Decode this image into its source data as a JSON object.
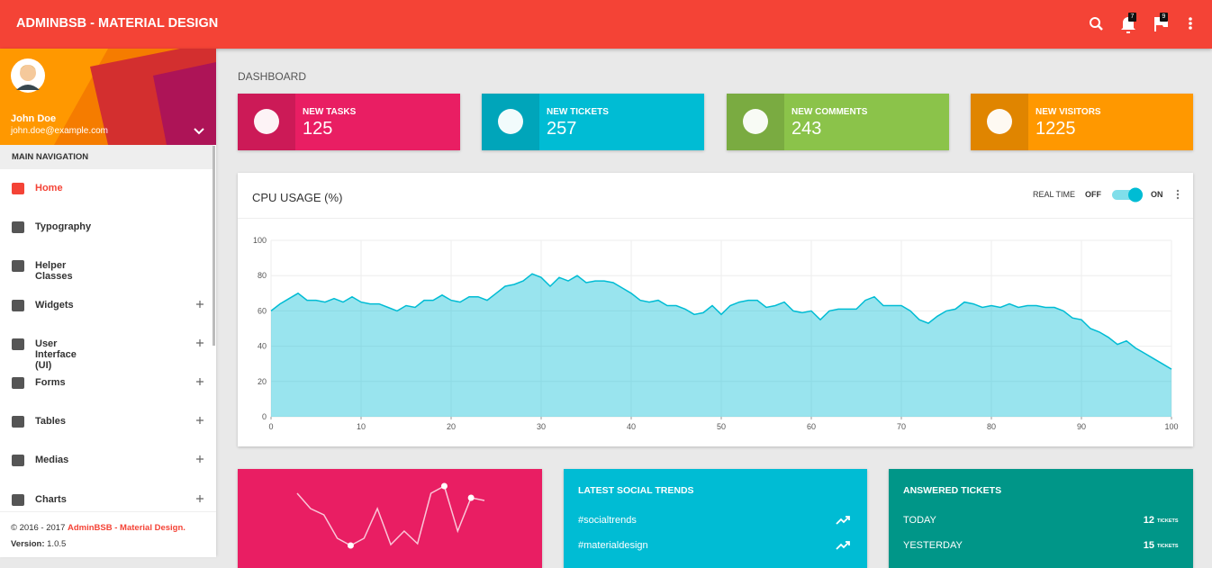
{
  "header": {
    "title": "ADMINBSB - MATERIAL DESIGN",
    "notifications": 7,
    "flags": 9
  },
  "user": {
    "name": "John Doe",
    "email": "john.doe@example.com"
  },
  "nav": {
    "heading": "MAIN NAVIGATION",
    "items": [
      {
        "label": "Home",
        "active": true,
        "expandable": false
      },
      {
        "label": "Typography",
        "active": false,
        "expandable": false
      },
      {
        "label": "Helper Classes",
        "active": false,
        "expandable": false
      },
      {
        "label": "Widgets",
        "active": false,
        "expandable": true
      },
      {
        "label": "User Interface (UI)",
        "active": false,
        "expandable": true
      },
      {
        "label": "Forms",
        "active": false,
        "expandable": true
      },
      {
        "label": "Tables",
        "active": false,
        "expandable": true
      },
      {
        "label": "Medias",
        "active": false,
        "expandable": true
      },
      {
        "label": "Charts",
        "active": false,
        "expandable": true
      }
    ]
  },
  "footer": {
    "copyright": "© 2016 - 2017",
    "brand": "AdminBSB - Material Design.",
    "version_label": "Version:",
    "version": "1.0.5"
  },
  "page_title": "DASHBOARD",
  "info_boxes": [
    {
      "label": "NEW TASKS",
      "value": 125,
      "color": "#e91e63"
    },
    {
      "label": "NEW TICKETS",
      "value": 257,
      "color": "#00bcd4"
    },
    {
      "label": "NEW COMMENTS",
      "value": 243,
      "color": "#8bc34a"
    },
    {
      "label": "NEW VISITORS",
      "value": 1225,
      "color": "#ff9800"
    }
  ],
  "cpu_card": {
    "realtime": "REAL TIME",
    "off": "OFF",
    "on": "ON"
  },
  "social_trends": {
    "title": "LATEST SOCIAL TRENDS",
    "items": [
      "#socialtrends",
      "#materialdesign"
    ]
  },
  "answered_tickets": {
    "title": "ANSWERED TICKETS",
    "rows": [
      {
        "label": "TODAY",
        "count": 12,
        "unit": "TICKETS"
      },
      {
        "label": "YESTERDAY",
        "count": 15,
        "unit": "TICKETS"
      }
    ]
  },
  "chart_data": [
    {
      "type": "area",
      "title": "CPU USAGE (%)",
      "color": "#00bcd4",
      "x": [
        0,
        1,
        2,
        3,
        4,
        5,
        6,
        7,
        8,
        9,
        10,
        11,
        12,
        13,
        14,
        15,
        16,
        17,
        18,
        19,
        20,
        21,
        22,
        23,
        24,
        25,
        26,
        27,
        28,
        29,
        30,
        31,
        32,
        33,
        34,
        35,
        36,
        37,
        38,
        39,
        40,
        41,
        42,
        43,
        44,
        45,
        46,
        47,
        48,
        49,
        50,
        51,
        52,
        53,
        54,
        55,
        56,
        57,
        58,
        59,
        60,
        61,
        62,
        63,
        64,
        65,
        66,
        67,
        68,
        69,
        70,
        71,
        72,
        73,
        74,
        75,
        76,
        77,
        78,
        79,
        80,
        81,
        82,
        83,
        84,
        85,
        86,
        87,
        88,
        89,
        90,
        91,
        92,
        93,
        94,
        95,
        96,
        97,
        98,
        99,
        100
      ],
      "values": [
        60,
        64,
        67,
        70,
        66,
        66,
        65,
        67,
        65,
        68,
        65,
        64,
        64,
        62,
        60,
        63,
        62,
        66,
        66,
        69,
        66,
        65,
        68,
        68,
        66,
        70,
        74,
        75,
        77,
        81,
        79,
        74,
        79,
        77,
        80,
        76,
        77,
        77,
        76,
        73,
        70,
        66,
        65,
        66,
        63,
        63,
        61,
        58,
        59,
        63,
        58,
        63,
        65,
        66,
        66,
        62,
        63,
        65,
        60,
        59,
        60,
        55,
        60,
        61,
        61,
        61,
        66,
        68,
        63,
        63,
        63,
        60,
        55,
        53,
        57,
        60,
        61,
        65,
        64,
        62,
        63,
        62,
        64,
        62,
        63,
        63,
        62,
        62,
        60,
        56,
        55,
        50,
        48,
        45,
        41,
        43,
        39,
        36,
        33,
        30,
        27
      ],
      "xlim": [
        0,
        100
      ],
      "ylim": [
        0,
        100
      ],
      "xticks": [
        0,
        10,
        20,
        30,
        40,
        50,
        60,
        70,
        80,
        90,
        100
      ],
      "yticks": [
        0,
        20,
        40,
        60,
        80,
        100
      ],
      "grid": true
    },
    {
      "type": "line",
      "color": "#ffffff",
      "values": [
        72,
        55,
        48,
        22,
        14,
        22,
        55,
        15,
        30,
        16,
        72,
        80,
        30,
        67,
        64
      ],
      "markers": [
        4,
        11,
        13
      ]
    }
  ]
}
